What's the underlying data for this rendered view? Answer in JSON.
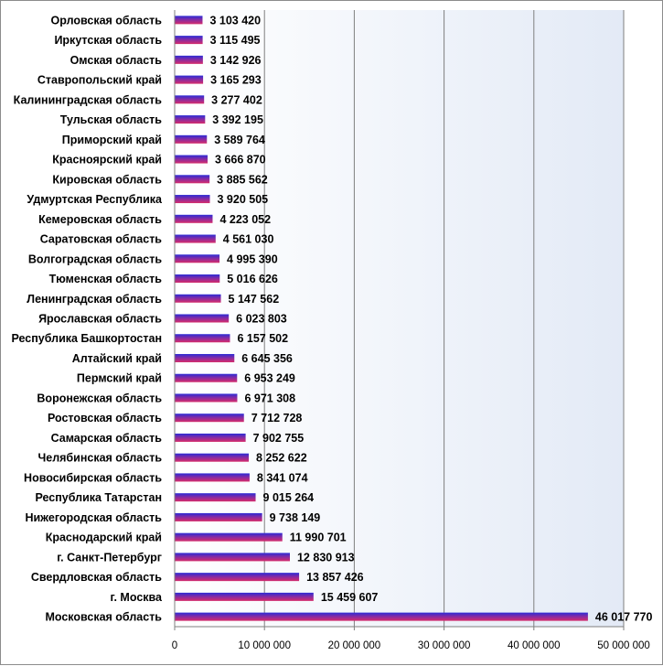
{
  "chart_data": {
    "type": "bar",
    "orientation": "horizontal",
    "categories": [
      "Орловская область",
      "Иркутская область",
      "Омская область",
      "Ставропольский край",
      "Калининградская  область",
      "Тульская область",
      "Приморский край",
      "Красноярский край",
      "Кировская область",
      "Удмуртская Республика",
      "Кемеровская область",
      "Саратовская область",
      "Волгоградская область",
      "Тюменская область",
      "Ленинградская область",
      "Ярославская область",
      "Республика Башкортостан",
      "Алтайский край",
      "Пермский край",
      "Воронежская область",
      "Ростовская область",
      "Самарская область",
      "Челябинская область",
      "Новосибирская область",
      "Республика Татарстан",
      "Нижегородская область",
      "Краснодарский край",
      "г. Санкт-Петербург",
      "Свердловская область",
      "г. Москва",
      "Московская область"
    ],
    "values": [
      3103420,
      3115495,
      3142926,
      3165293,
      3277402,
      3392195,
      3589764,
      3666870,
      3885562,
      3920505,
      4223052,
      4561030,
      4995390,
      5016626,
      5147562,
      6023803,
      6157502,
      6645356,
      6953249,
      6971308,
      7712728,
      7902755,
      8252622,
      8341074,
      9015264,
      9738149,
      11990701,
      12830913,
      13857426,
      15459607,
      46017770
    ],
    "value_labels": [
      "3 103 420",
      "3 115 495",
      "3 142 926",
      "3 165 293",
      "3 277 402",
      "3 392 195",
      "3 589 764",
      "3 666 870",
      "3 885 562",
      "3 920 505",
      "4 223 052",
      "4 561 030",
      "4 995 390",
      "5 016 626",
      "5 147 562",
      "6 023 803",
      "6 157 502",
      "6 645 356",
      "6 953 249",
      "6 971 308",
      "7 712 728",
      "7 902 755",
      "8 252 622",
      "8 341 074",
      "9 015 264",
      "9 738 149",
      "11 990 701",
      "12 830 913",
      "13 857 426",
      "15 459 607",
      "46 017 770"
    ],
    "xlim": [
      0,
      50000000
    ],
    "x_ticks": [
      0,
      10000000,
      20000000,
      30000000,
      40000000,
      50000000
    ],
    "x_tick_labels": [
      "0",
      "10 000 000",
      "20 000 000",
      "30 000 000",
      "40 000 000",
      "50 000 000"
    ],
    "grid": "vertical",
    "legend": "none",
    "colors": {
      "bar_top": "#2b2bd6",
      "bar_bottom": "#d62b6a",
      "plot_bg_left": "#ffffff",
      "plot_bg_right": "#e3eaf6",
      "gridline": "#7f7f7f"
    }
  }
}
